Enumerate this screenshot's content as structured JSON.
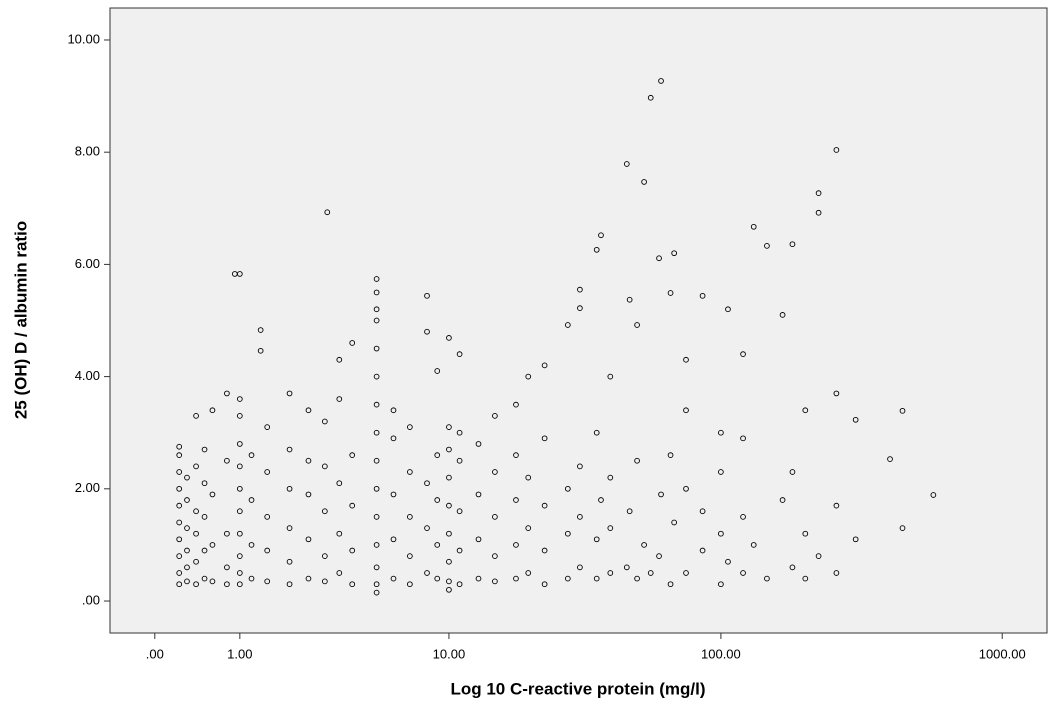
{
  "chart_data": {
    "type": "scatter",
    "x_label": "Log 10 C-reactive protein (mg/l)",
    "y_label": "25 (OH) D / albumin ratio",
    "xscale": "log10(x+1)",
    "xlim": [
      -0.306,
      1441
    ],
    "ylim": [
      -0.57,
      10.57
    ],
    "xticks": [
      {
        "value": 0,
        "label": ".00"
      },
      {
        "value": 1,
        "label": "1.00"
      },
      {
        "value": 10,
        "label": "10.00"
      },
      {
        "value": 100,
        "label": "100.00"
      },
      {
        "value": 1000,
        "label": "1000.00"
      }
    ],
    "yticks": [
      {
        "value": 0,
        "label": ".00"
      },
      {
        "value": 2,
        "label": "2.00"
      },
      {
        "value": 4,
        "label": "4.00"
      },
      {
        "value": 6,
        "label": "6.00"
      },
      {
        "value": 8,
        "label": "8.00"
      },
      {
        "value": 10,
        "label": "10.00"
      }
    ],
    "background": "#f0f0f0",
    "series": [
      {
        "color": "#000000",
        "x": [
          0.22,
          0.22,
          0.22,
          0.22,
          0.22,
          0.22,
          0.22,
          0.22,
          0.22,
          0.22,
          0.3,
          0.3,
          0.3,
          0.3,
          0.3,
          0.3,
          0.4,
          0.4,
          0.4,
          0.4,
          0.4,
          0.4,
          0.5,
          0.5,
          0.5,
          0.5,
          0.5,
          0.6,
          0.6,
          0.6,
          0.6,
          0.8,
          0.8,
          0.8,
          0.8,
          0.8,
          1,
          1,
          1,
          1,
          1,
          1,
          1,
          1,
          1,
          1,
          1,
          0.92,
          1.2,
          1.2,
          1.2,
          1.2,
          1.37,
          1.37,
          1.5,
          1.5,
          1.5,
          1.5,
          1.5,
          2,
          2,
          2,
          2,
          2,
          2,
          2.5,
          2.5,
          2.5,
          2.5,
          2.5,
          3,
          3,
          3,
          3,
          3,
          3.08,
          3.5,
          3.5,
          3.5,
          3.5,
          3.5,
          4,
          4,
          4,
          4,
          4,
          5.1,
          5.1,
          5.1,
          5.1,
          5.1,
          5.1,
          5.1,
          5.1,
          5.1,
          5.1,
          5.1,
          5.1,
          5.1,
          5.1,
          5.1,
          6,
          6,
          6,
          6,
          6,
          7,
          7,
          7,
          7,
          7,
          8.2,
          8.2,
          8.2,
          8.2,
          8.2,
          9,
          9,
          9,
          9,
          9,
          10,
          10,
          10,
          10,
          10,
          10,
          10,
          10,
          10,
          11,
          11,
          11,
          11,
          11,
          11,
          13,
          13,
          13,
          13,
          15,
          15,
          15,
          15,
          15,
          18,
          18,
          18,
          18,
          18,
          20,
          20,
          20,
          20,
          23,
          23,
          23,
          23,
          23,
          28,
          28,
          28,
          28,
          31,
          31,
          31,
          31,
          31,
          35.7,
          35.7,
          35.7,
          35.7,
          37,
          37,
          40,
          40,
          40,
          40,
          45.9,
          45.9,
          47,
          47,
          50,
          50,
          50,
          53,
          53,
          56,
          56,
          61,
          61,
          60,
          60,
          66,
          66,
          66,
          68,
          68,
          75,
          75,
          75,
          75,
          86,
          86,
          86,
          100,
          100,
          100,
          100,
          106,
          106,
          120,
          120,
          120,
          120,
          131,
          131,
          146,
          146,
          166,
          166,
          180,
          180,
          180,
          200,
          200,
          200,
          223,
          223,
          223,
          258,
          258,
          258,
          258,
          302,
          302,
          400,
          443,
          443,
          570
        ],
        "values": [
          0.3,
          0.5,
          0.8,
          1.1,
          1.4,
          1.7,
          2.0,
          2.3,
          2.6,
          2.75,
          0.35,
          0.6,
          0.9,
          1.3,
          1.8,
          2.2,
          0.3,
          0.7,
          1.2,
          1.6,
          2.4,
          3.3,
          0.4,
          0.9,
          1.5,
          2.1,
          2.7,
          0.35,
          1.0,
          1.9,
          3.4,
          0.3,
          0.6,
          1.2,
          2.5,
          3.7,
          0.3,
          0.5,
          0.8,
          1.2,
          1.6,
          2.0,
          2.4,
          2.8,
          3.3,
          3.6,
          5.83,
          5.83,
          0.4,
          1.0,
          1.8,
          2.6,
          4.83,
          4.46,
          0.35,
          0.9,
          1.5,
          2.3,
          3.1,
          0.3,
          0.7,
          1.3,
          2.0,
          2.7,
          3.7,
          0.4,
          1.1,
          1.9,
          2.5,
          3.4,
          0.35,
          0.8,
          1.6,
          2.4,
          3.2,
          6.93,
          0.5,
          1.2,
          2.1,
          3.6,
          4.3,
          0.3,
          0.9,
          1.7,
          2.6,
          4.6,
          0.15,
          0.3,
          0.6,
          1.0,
          1.5,
          2.0,
          2.5,
          3.0,
          3.5,
          4.0,
          4.5,
          5.0,
          5.2,
          5.5,
          5.74,
          0.4,
          1.1,
          1.9,
          2.9,
          3.4,
          0.3,
          0.8,
          1.5,
          2.3,
          3.1,
          5.44,
          0.5,
          1.3,
          2.1,
          4.8,
          0.4,
          1.0,
          1.8,
          2.6,
          4.1,
          0.2,
          0.35,
          0.7,
          1.2,
          1.7,
          2.2,
          2.7,
          3.1,
          4.69,
          0.3,
          0.9,
          1.6,
          2.5,
          3.0,
          4.4,
          0.4,
          1.1,
          1.9,
          2.8,
          0.35,
          0.8,
          1.5,
          2.3,
          3.3,
          0.4,
          1.0,
          1.8,
          2.6,
          3.5,
          0.5,
          1.3,
          2.2,
          4.0,
          0.3,
          0.9,
          1.7,
          2.9,
          4.2,
          0.4,
          1.2,
          2.0,
          4.92,
          0.6,
          1.5,
          2.4,
          5.22,
          5.55,
          6.26,
          0.4,
          1.1,
          3.0,
          6.52,
          1.8,
          0.5,
          1.3,
          2.2,
          4.0,
          7.79,
          0.6,
          5.37,
          1.6,
          4.92,
          0.4,
          2.5,
          7.47,
          1.0,
          8.97,
          0.5,
          9.27,
          1.9,
          6.11,
          0.8,
          5.49,
          2.6,
          0.3,
          6.2,
          1.4,
          0.5,
          2.0,
          3.4,
          4.3,
          5.44,
          0.9,
          1.6,
          0.3,
          1.2,
          2.3,
          3.0,
          5.2,
          0.7,
          0.5,
          1.5,
          2.9,
          4.4,
          6.67,
          1.0,
          6.33,
          0.4,
          5.1,
          1.8,
          6.36,
          0.6,
          2.3,
          0.4,
          1.2,
          3.4,
          7.27,
          6.92,
          0.8,
          8.04,
          0.5,
          1.7,
          3.7,
          3.23,
          1.1,
          2.53,
          3.39,
          1.3,
          1.89
        ]
      }
    ]
  }
}
